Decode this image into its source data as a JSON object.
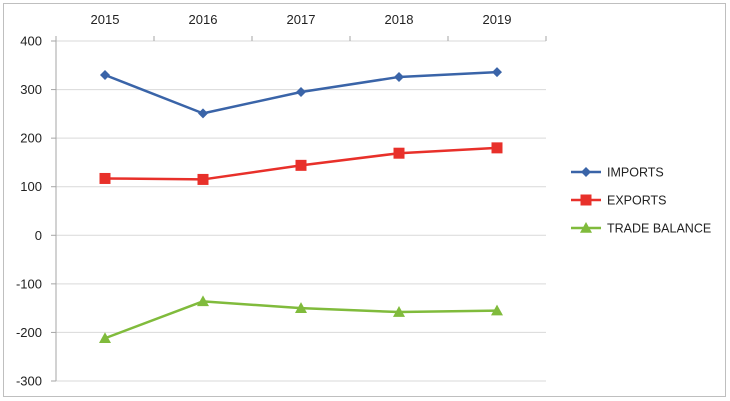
{
  "chart_data": {
    "type": "line",
    "categories": [
      "2015",
      "2016",
      "2017",
      "2018",
      "2019"
    ],
    "series": [
      {
        "name": "IMPORTS",
        "values": [
          330,
          251,
          295,
          326,
          336
        ],
        "color": "#3a64a8",
        "marker": "diamond"
      },
      {
        "name": "EXPORTS",
        "values": [
          117,
          115,
          144,
          169,
          180
        ],
        "color": "#e8302a",
        "marker": "square"
      },
      {
        "name": "TRADE BALANCE",
        "values": [
          -212,
          -136,
          -150,
          -158,
          -155
        ],
        "color": "#80bb3c",
        "marker": "triangle"
      }
    ],
    "ylim": [
      -300,
      400
    ],
    "yticks": [
      400,
      300,
      200,
      100,
      0,
      -100,
      -200,
      -300
    ],
    "ytick_labels": [
      "400",
      "300",
      "200",
      "100",
      "0",
      "-100",
      "-200",
      "-300"
    ],
    "grid": true,
    "x_axis_position": "top",
    "legend_position": "right",
    "title": "",
    "xlabel": "",
    "ylabel": ""
  }
}
